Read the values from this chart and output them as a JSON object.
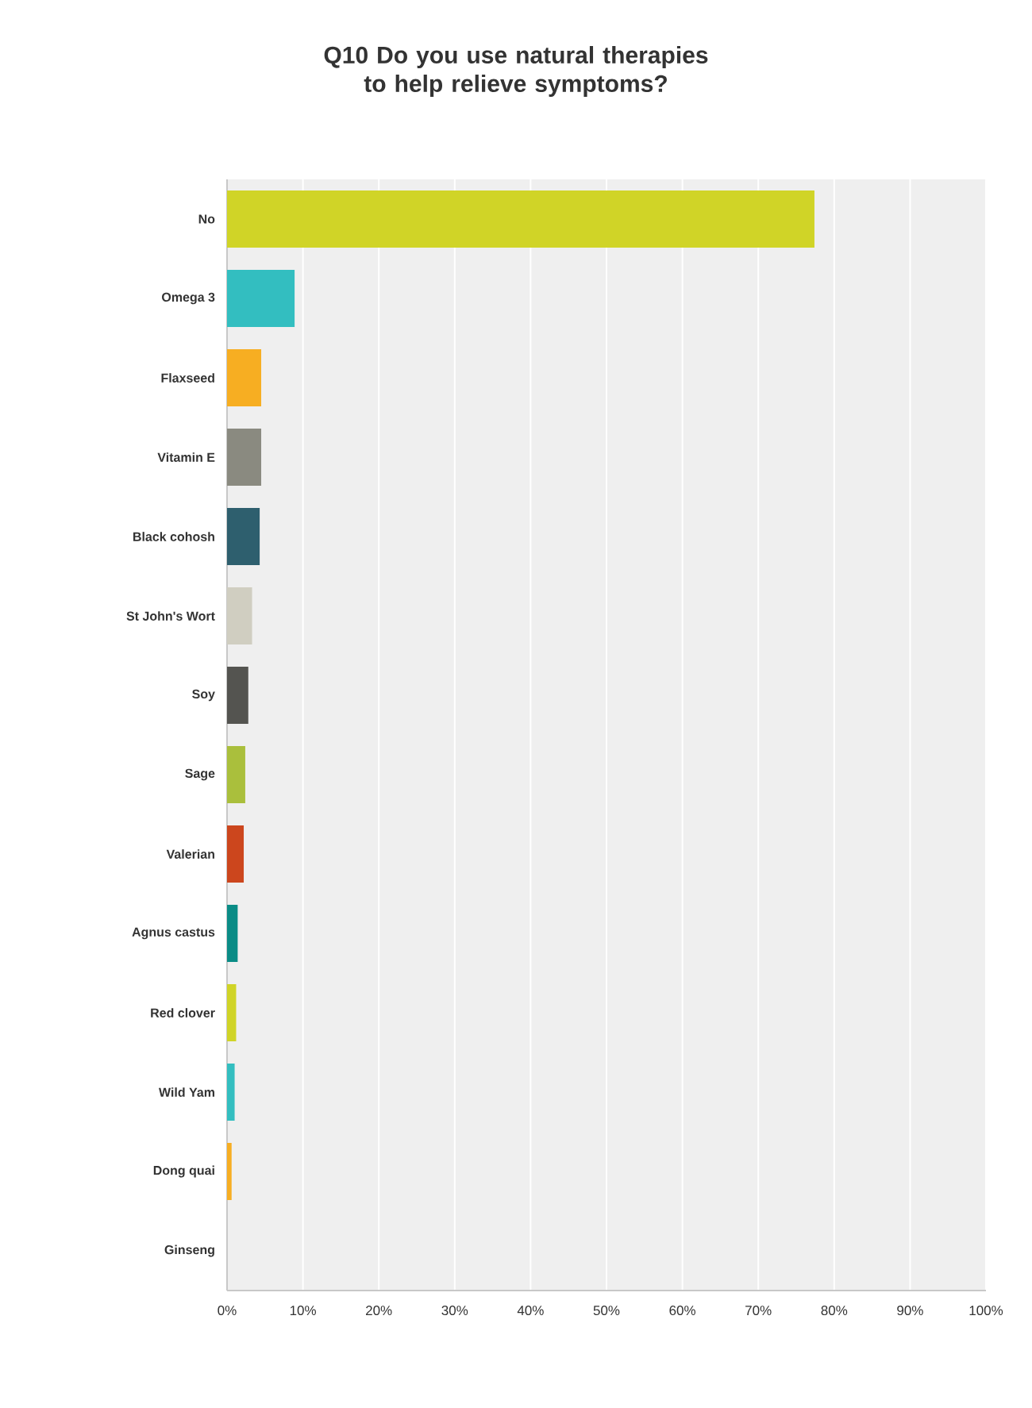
{
  "chart_data": {
    "type": "bar",
    "orientation": "horizontal",
    "title": "Q10 Do you use natural therapies to help relieve symptoms?",
    "categories": [
      "No",
      "Omega 3",
      "Flaxseed",
      "Vitamin E",
      "Black cohosh",
      "St John's Wort",
      "Soy",
      "Sage",
      "Valerian",
      "Agnus castus",
      "Red clover",
      "Wild Yam",
      "Dong quai",
      "Ginseng"
    ],
    "values": [
      77.4,
      8.9,
      4.5,
      4.5,
      4.3,
      3.3,
      2.8,
      2.4,
      2.2,
      1.4,
      1.2,
      1.0,
      0.6,
      0
    ],
    "colors": [
      "#d0d427",
      "#33bec0",
      "#f7ae22",
      "#8a8a80",
      "#2e5f6e",
      "#d0cec1",
      "#545450",
      "#aabf3c",
      "#cc461d",
      "#0a8c86",
      "#d0d427",
      "#33bec0",
      "#f7ae22",
      "#8a8a80"
    ],
    "xlim": [
      0,
      100
    ],
    "xticks": [
      {
        "value": 0,
        "label": "0%"
      },
      {
        "value": 10,
        "label": "10%"
      },
      {
        "value": 20,
        "label": "20%"
      },
      {
        "value": 30,
        "label": "30%"
      },
      {
        "value": 40,
        "label": "40%"
      },
      {
        "value": 50,
        "label": "50%"
      },
      {
        "value": 60,
        "label": "60%"
      },
      {
        "value": 70,
        "label": "70%"
      },
      {
        "value": 80,
        "label": "80%"
      },
      {
        "value": 90,
        "label": "90%"
      },
      {
        "value": 100,
        "label": "100%"
      }
    ],
    "grid": "x"
  }
}
